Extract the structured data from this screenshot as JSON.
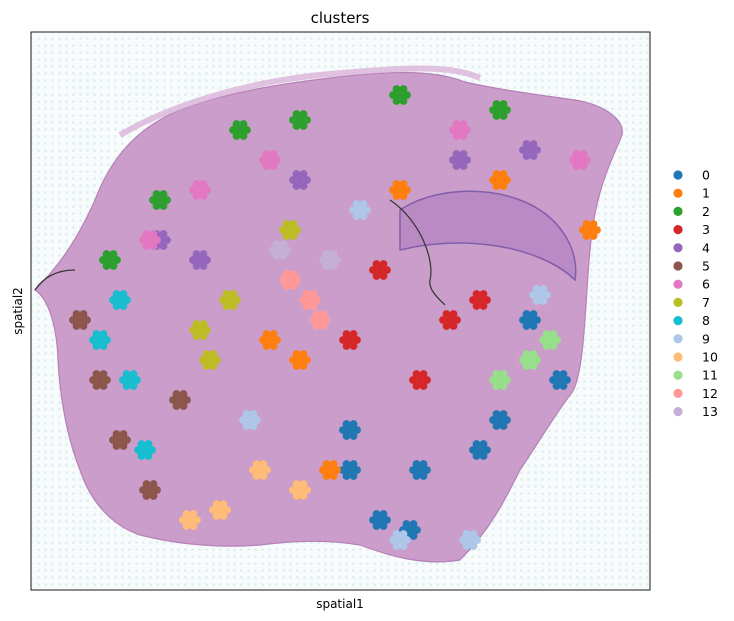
{
  "chart_data": {
    "type": "scatter",
    "title": "clusters",
    "xlabel": "spatial1",
    "ylabel": "spatial2",
    "grid": false,
    "ticks": "none",
    "background": "tissue-histology-image",
    "legend": {
      "placement": "right",
      "entries": [
        "0",
        "1",
        "2",
        "3",
        "4",
        "5",
        "6",
        "7",
        "8",
        "9",
        "10",
        "11",
        "12",
        "13"
      ]
    },
    "series": [
      {
        "name": "0",
        "color": "#1f77b4",
        "points": [
          [
            350,
            430
          ],
          [
            560,
            380
          ],
          [
            380,
            520
          ],
          [
            530,
            320
          ],
          [
            480,
            450
          ],
          [
            420,
            470
          ],
          [
            500,
            420
          ],
          [
            350,
            470
          ],
          [
            410,
            530
          ]
        ]
      },
      {
        "name": "1",
        "color": "#ff7f0e",
        "points": [
          [
            300,
            360
          ],
          [
            400,
            190
          ],
          [
            590,
            230
          ],
          [
            270,
            340
          ],
          [
            330,
            470
          ],
          [
            500,
            180
          ]
        ]
      },
      {
        "name": "2",
        "color": "#2ca02c",
        "points": [
          [
            400,
            95
          ],
          [
            240,
            130
          ],
          [
            160,
            200
          ],
          [
            110,
            260
          ],
          [
            500,
            110
          ],
          [
            300,
            120
          ]
        ]
      },
      {
        "name": "3",
        "color": "#d62728",
        "points": [
          [
            380,
            270
          ],
          [
            350,
            340
          ],
          [
            450,
            320
          ],
          [
            420,
            380
          ],
          [
            480,
            300
          ]
        ]
      },
      {
        "name": "4",
        "color": "#9467bd",
        "points": [
          [
            460,
            160
          ],
          [
            300,
            180
          ],
          [
            200,
            260
          ],
          [
            160,
            240
          ],
          [
            530,
            150
          ]
        ]
      },
      {
        "name": "5",
        "color": "#8c564b",
        "points": [
          [
            80,
            320
          ],
          [
            120,
            440
          ],
          [
            180,
            400
          ],
          [
            150,
            490
          ],
          [
            100,
            380
          ]
        ]
      },
      {
        "name": "6",
        "color": "#e377c2",
        "points": [
          [
            460,
            130
          ],
          [
            270,
            160
          ],
          [
            200,
            190
          ],
          [
            580,
            160
          ],
          [
            150,
            240
          ]
        ]
      },
      {
        "name": "7",
        "color": "#bcbd22",
        "points": [
          [
            200,
            330
          ],
          [
            230,
            300
          ],
          [
            290,
            230
          ],
          [
            210,
            360
          ]
        ]
      },
      {
        "name": "8",
        "color": "#17becf",
        "points": [
          [
            120,
            300
          ],
          [
            100,
            340
          ],
          [
            130,
            380
          ],
          [
            145,
            450
          ]
        ]
      },
      {
        "name": "9",
        "color": "#aec7e8",
        "points": [
          [
            250,
            420
          ],
          [
            540,
            295
          ],
          [
            360,
            210
          ],
          [
            400,
            540
          ],
          [
            470,
            540
          ]
        ]
      },
      {
        "name": "10",
        "color": "#ffbb78",
        "points": [
          [
            220,
            510
          ],
          [
            260,
            470
          ],
          [
            300,
            490
          ],
          [
            190,
            520
          ]
        ]
      },
      {
        "name": "11",
        "color": "#98df8a",
        "points": [
          [
            530,
            360
          ],
          [
            500,
            380
          ],
          [
            550,
            340
          ]
        ]
      },
      {
        "name": "12",
        "color": "#ff9896",
        "points": [
          [
            310,
            300
          ],
          [
            290,
            280
          ],
          [
            320,
            320
          ]
        ]
      },
      {
        "name": "13",
        "color": "#c5b0d5",
        "points": [
          [
            330,
            260
          ],
          [
            280,
            250
          ]
        ]
      }
    ]
  }
}
